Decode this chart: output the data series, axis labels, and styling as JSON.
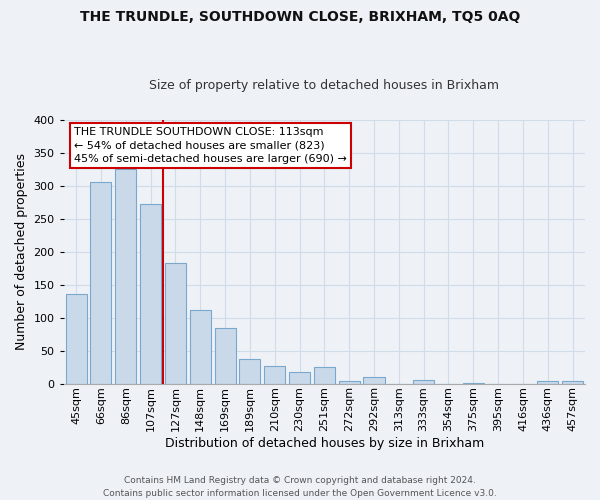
{
  "title": "THE TRUNDLE, SOUTHDOWN CLOSE, BRIXHAM, TQ5 0AQ",
  "subtitle": "Size of property relative to detached houses in Brixham",
  "xlabel": "Distribution of detached houses by size in Brixham",
  "ylabel": "Number of detached properties",
  "bar_labels": [
    "45sqm",
    "66sqm",
    "86sqm",
    "107sqm",
    "127sqm",
    "148sqm",
    "169sqm",
    "189sqm",
    "210sqm",
    "230sqm",
    "251sqm",
    "272sqm",
    "292sqm",
    "313sqm",
    "333sqm",
    "354sqm",
    "375sqm",
    "395sqm",
    "416sqm",
    "436sqm",
    "457sqm"
  ],
  "bar_values": [
    135,
    305,
    325,
    272,
    182,
    112,
    84,
    37,
    27,
    17,
    25,
    4,
    10,
    0,
    5,
    0,
    1,
    0,
    0,
    4,
    4
  ],
  "bar_color": "#c9d9ea",
  "bar_edge_color": "#7aa8cc",
  "highlight_line_index": 3,
  "highlight_color": "#cc0000",
  "annotation_text": "THE TRUNDLE SOUTHDOWN CLOSE: 113sqm\n← 54% of detached houses are smaller (823)\n45% of semi-detached houses are larger (690) →",
  "annotation_box_color": "#ffffff",
  "annotation_box_edge": "#cc0000",
  "ylim": [
    0,
    400
  ],
  "yticks": [
    0,
    50,
    100,
    150,
    200,
    250,
    300,
    350,
    400
  ],
  "footer_line1": "Contains HM Land Registry data © Crown copyright and database right 2024.",
  "footer_line2": "Contains public sector information licensed under the Open Government Licence v3.0.",
  "grid_color": "#d0dce8",
  "bg_color": "#eef2f7",
  "plot_bg_color": "#eef2f7",
  "title_fontsize": 10,
  "subtitle_fontsize": 9,
  "ylabel_fontsize": 9,
  "xlabel_fontsize": 9,
  "tick_fontsize": 8,
  "annotation_fontsize": 8
}
